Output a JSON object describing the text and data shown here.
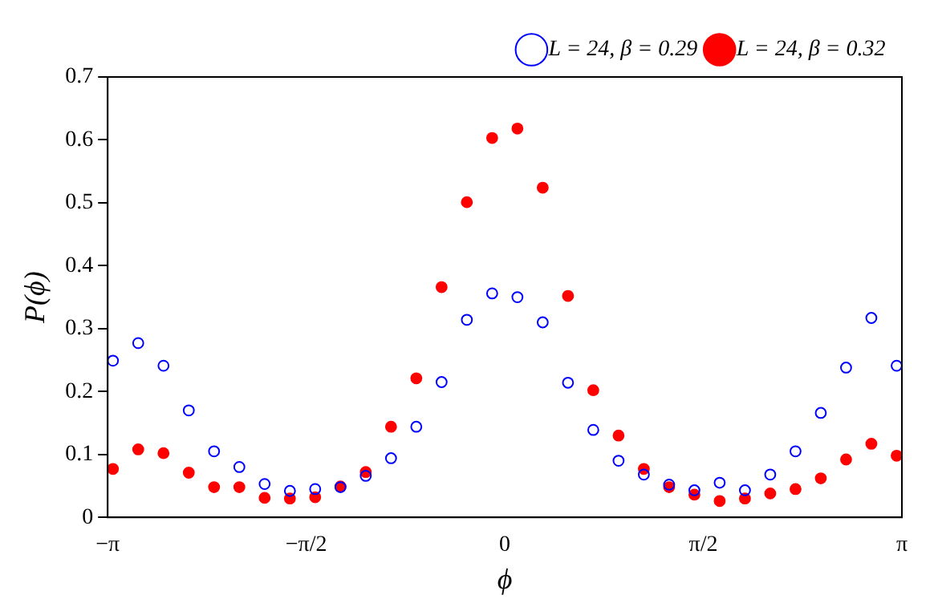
{
  "chart_data": {
    "type": "scatter",
    "xlabel": "ϕ",
    "ylabel": "P(ϕ)",
    "x": [
      -3.1,
      -2.9,
      -2.7,
      -2.5,
      -2.3,
      -2.1,
      -1.9,
      -1.7,
      -1.5,
      -1.3,
      -1.1,
      -0.9,
      -0.7,
      -0.5,
      -0.3,
      -0.1,
      0.1,
      0.3,
      0.5,
      0.7,
      0.9,
      1.1,
      1.3,
      1.5,
      1.7,
      1.9,
      2.1,
      2.3,
      2.5,
      2.7,
      2.9,
      3.1
    ],
    "series": [
      {
        "name": "L = 24, β = 0.29",
        "color": "#0000ff",
        "marker": "circle",
        "values": [
          0.249,
          0.277,
          0.241,
          0.17,
          0.105,
          0.08,
          0.053,
          0.042,
          0.045,
          0.048,
          0.066,
          0.094,
          0.144,
          0.215,
          0.314,
          0.356,
          0.35,
          0.31,
          0.214,
          0.139,
          0.09,
          0.068,
          0.052,
          0.043,
          0.055,
          0.043,
          0.068,
          0.105,
          0.166,
          0.238,
          0.317,
          0.241
        ]
      },
      {
        "name": "L = 24, β = 0.32",
        "color": "#ff0000",
        "marker": "circle",
        "values": [
          0.077,
          0.108,
          0.102,
          0.071,
          0.048,
          0.048,
          0.031,
          0.03,
          0.032,
          0.049,
          0.072,
          0.144,
          0.221,
          0.366,
          0.501,
          0.603,
          0.618,
          0.524,
          0.352,
          0.202,
          0.13,
          0.077,
          0.048,
          0.036,
          0.026,
          0.03,
          0.038,
          0.045,
          0.062,
          0.092,
          0.117,
          0.098
        ]
      }
    ],
    "xlim": [
      -3.1416,
      3.1416
    ],
    "xticks": [
      {
        "value": -3.1416,
        "label": "−π"
      },
      {
        "value": -1.5708,
        "label": "−π/2"
      },
      0,
      {
        "value": 1.5708,
        "label": "π/2"
      },
      {
        "value": 3.1416,
        "label": "π"
      }
    ],
    "ylim": [
      0,
      0.7
    ],
    "yticks": [
      0,
      0.1,
      0.2,
      0.3,
      0.4,
      0.5,
      0.6,
      0.7
    ],
    "grid": false,
    "legend": "top right"
  }
}
